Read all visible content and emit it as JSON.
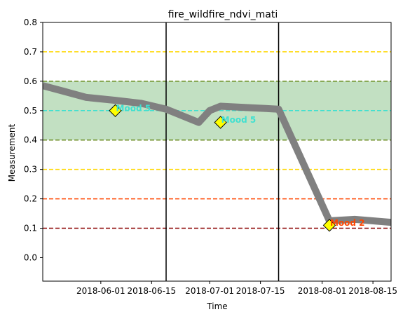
{
  "chart_data": {
    "type": "line",
    "title": "fire_wildfire_ndvi_mati",
    "xlabel": "Time",
    "ylabel": "Measurement",
    "ylim": [
      -0.08,
      0.8
    ],
    "yticks": [
      0.0,
      0.1,
      0.2,
      0.3,
      0.4,
      0.5,
      0.6,
      0.7,
      0.8
    ],
    "ytick_labels": [
      "0.0",
      "0.1",
      "0.2",
      "0.3",
      "0.4",
      "0.5",
      "0.6",
      "0.7",
      "0.8"
    ],
    "xlim": [
      "2018-05-16",
      "2018-08-20"
    ],
    "xticks": [
      "2018-06-01",
      "2018-06-15",
      "2018-07-01",
      "2018-07-15",
      "2018-08-01",
      "2018-08-15"
    ],
    "xtick_labels": [
      "2018-06-01",
      "2018-06-15",
      "2018-07-01",
      "2018-07-15",
      "2018-08-01",
      "2018-08-15"
    ],
    "grid": false,
    "band": {
      "y0": 0.4,
      "y1": 0.6,
      "color": "#c2e0c2",
      "edge_color": "#6b8e23"
    },
    "hlines": [
      {
        "y": 0.7,
        "color": "#ffd700"
      },
      {
        "y": 0.5,
        "color": "#40e0d0"
      },
      {
        "y": 0.3,
        "color": "#ffd700"
      },
      {
        "y": 0.2,
        "color": "#ff4500"
      },
      {
        "y": 0.1,
        "color": "#8b0000"
      }
    ],
    "vlines": [
      "2018-06-19",
      "2018-07-20"
    ],
    "series": [
      {
        "color": "#808080",
        "x": [
          "2018-05-16",
          "2018-05-22",
          "2018-05-28",
          "2018-06-05",
          "2018-06-12",
          "2018-06-19",
          "2018-06-28",
          "2018-07-01",
          "2018-07-04",
          "2018-07-12",
          "2018-07-20",
          "2018-08-03",
          "2018-08-10",
          "2018-08-20"
        ],
        "y": [
          0.585,
          0.565,
          0.545,
          0.535,
          0.525,
          0.505,
          0.46,
          0.5,
          0.515,
          0.51,
          0.505,
          0.125,
          0.13,
          0.12
        ]
      }
    ],
    "markers": [
      {
        "x": "2018-06-05",
        "y": 0.5,
        "label": "Mood 5",
        "label_color": "#40e0d0"
      },
      {
        "x": "2018-07-04",
        "y": 0.46,
        "label": "Mood 5",
        "label_color": "#40e0d0"
      },
      {
        "x": "2018-08-03",
        "y": 0.11,
        "label": "Mood 2",
        "label_color": "#ff4500"
      }
    ],
    "marker_color": "#ffff00"
  }
}
